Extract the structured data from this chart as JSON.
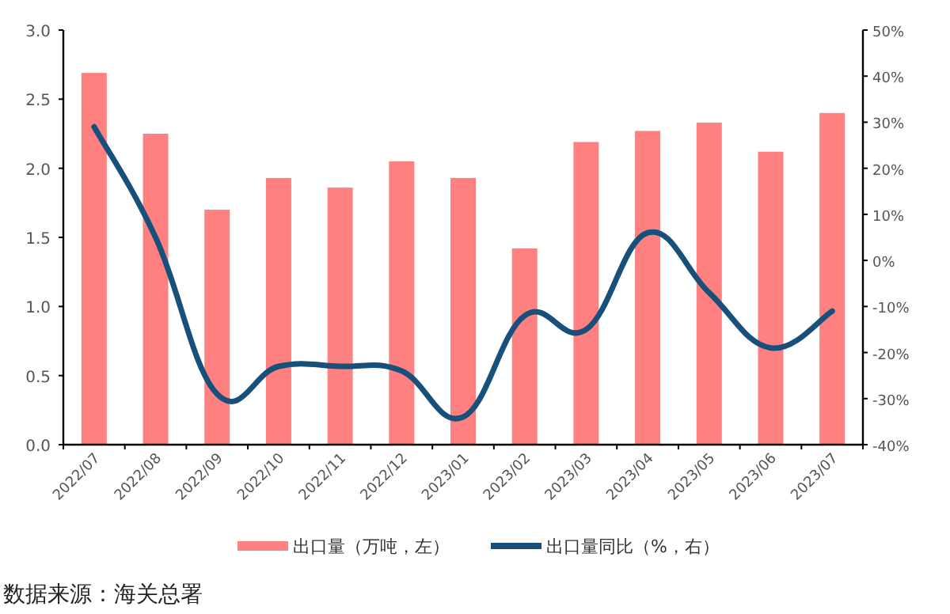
{
  "chart_data": {
    "type": "bar",
    "categories": [
      "2022/07",
      "2022/08",
      "2022/09",
      "2022/10",
      "2022/11",
      "2022/12",
      "2023/01",
      "2023/02",
      "2023/03",
      "2023/04",
      "2023/05",
      "2023/06",
      "2023/07"
    ],
    "series": [
      {
        "name": "出口量（万吨，左）",
        "color": "#ff8080",
        "values": [
          2.69,
          2.25,
          1.7,
          1.93,
          1.86,
          2.05,
          1.93,
          1.42,
          2.19,
          2.27,
          2.33,
          2.12,
          2.4
        ]
      },
      {
        "name": "出口量同比（%，右）",
        "type": "line",
        "axis": "y2",
        "color": "#17507a",
        "values": [
          29,
          5,
          -29,
          -23,
          -23,
          -24,
          -34,
          -12,
          -15,
          6,
          -7,
          -19,
          -11
        ]
      }
    ],
    "ylim": [
      0,
      3
    ],
    "yticks": [
      {
        "value": 0,
        "label": "0.0"
      },
      {
        "value": 0.5,
        "label": "0.5"
      },
      {
        "value": 1,
        "label": "1.0"
      },
      {
        "value": 1.5,
        "label": "1.5"
      },
      {
        "value": 2,
        "label": "2.0"
      },
      {
        "value": 2.5,
        "label": "2.5"
      },
      {
        "value": 3,
        "label": "3.0"
      }
    ],
    "y2lim": [
      -40,
      50
    ],
    "y2ticks": [
      {
        "value": -40,
        "label": "-40%"
      },
      {
        "value": -30,
        "label": "-30%"
      },
      {
        "value": -20,
        "label": "-20%"
      },
      {
        "value": -10,
        "label": "-10%"
      },
      {
        "value": 0,
        "label": "0%"
      },
      {
        "value": 10,
        "label": "10%"
      },
      {
        "value": 20,
        "label": "20%"
      },
      {
        "value": 30,
        "label": "30%"
      },
      {
        "value": 40,
        "label": "40%"
      },
      {
        "value": 50,
        "label": "50%"
      }
    ],
    "legend": "bottom",
    "annotations": [
      "数据来源：海关总署"
    ]
  }
}
